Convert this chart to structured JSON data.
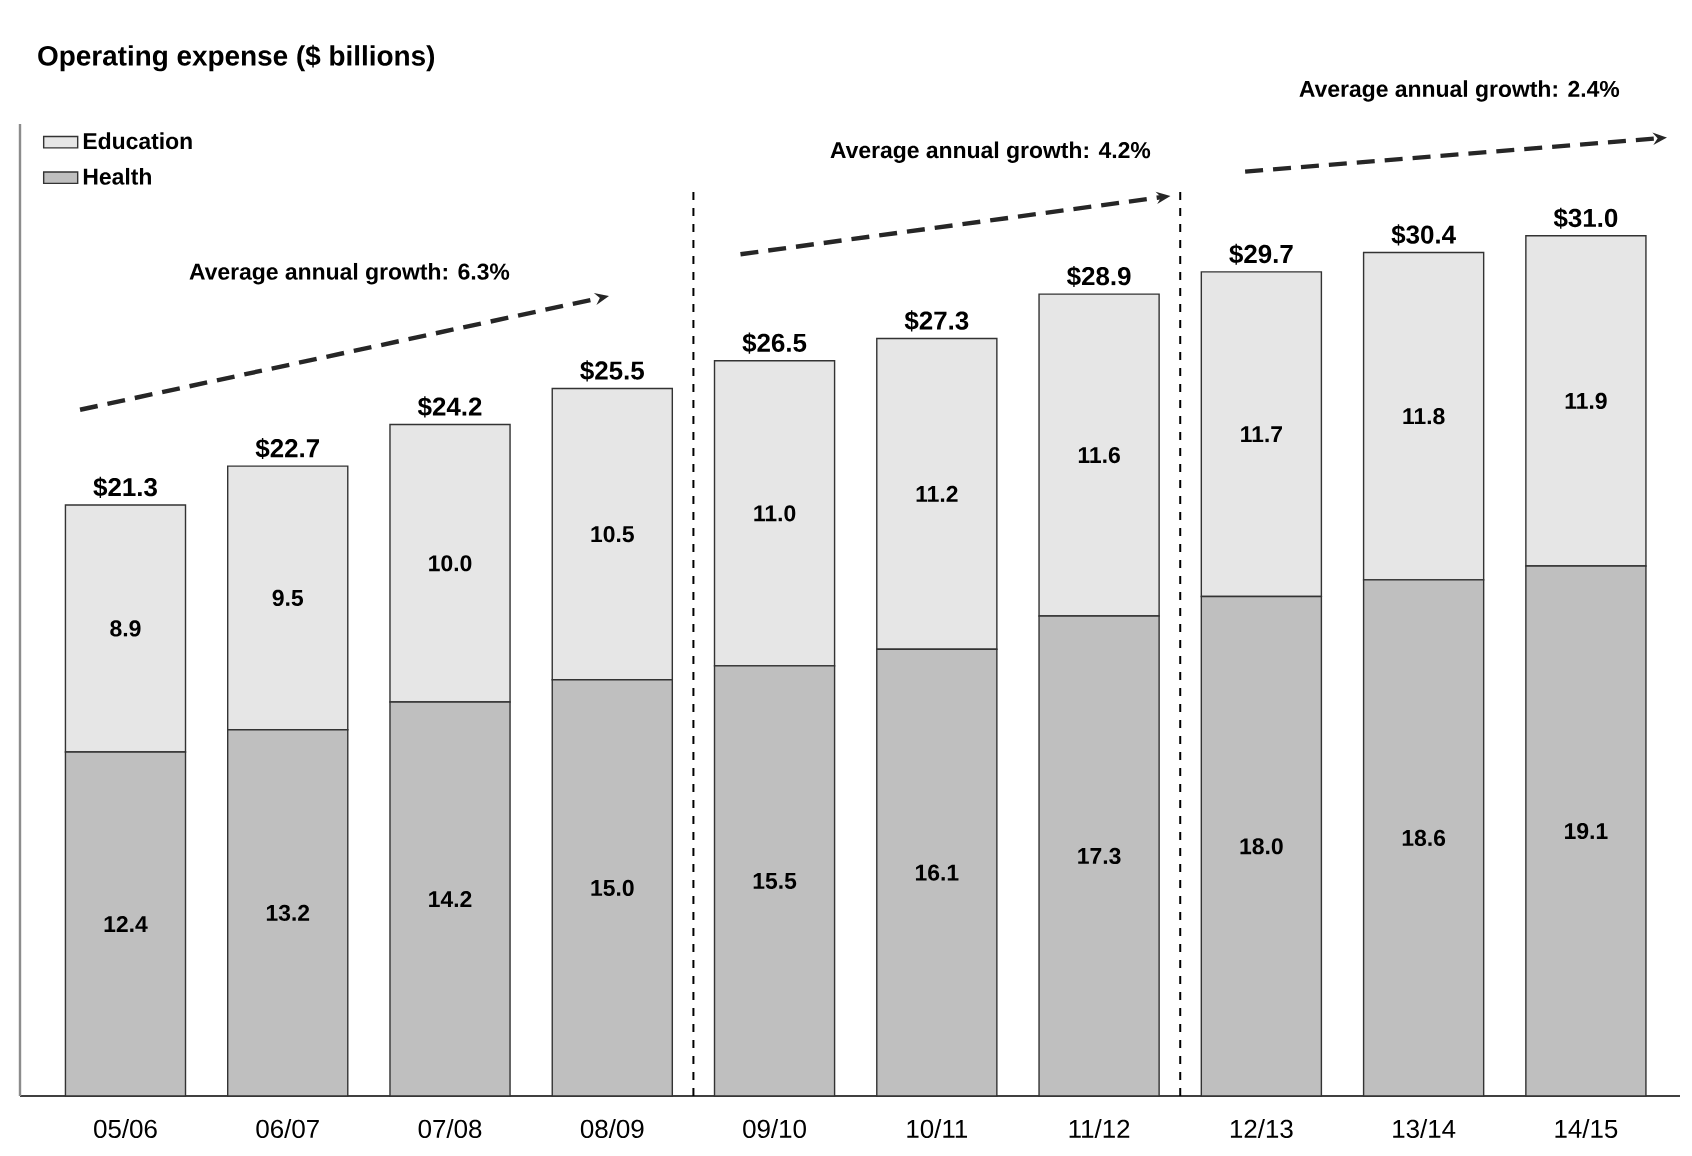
{
  "chart_data": {
    "type": "bar",
    "stacked": true,
    "title": "Operating expense ($ billions)",
    "categories": [
      "05/06",
      "06/07",
      "07/08",
      "08/09",
      "09/10",
      "10/11",
      "11/12",
      "12/13",
      "13/14",
      "14/15"
    ],
    "series": [
      {
        "name": "Health",
        "color": "#bfbfbf",
        "values": [
          12.4,
          13.2,
          14.2,
          15.0,
          15.5,
          16.1,
          17.3,
          18.0,
          18.6,
          19.1
        ],
        "value_labels": [
          "12.4",
          "13.2",
          "14.2",
          "15.0",
          "15.5",
          "16.1",
          "17.3",
          "18.0",
          "18.6",
          "19.1"
        ]
      },
      {
        "name": "Education",
        "color": "#e6e6e6",
        "values": [
          8.9,
          9.5,
          10.0,
          10.5,
          11.0,
          11.2,
          11.6,
          11.7,
          11.8,
          11.9
        ],
        "value_labels": [
          "8.9",
          "9.5",
          "10.0",
          "10.5",
          "11.0",
          "11.2",
          "11.6",
          "11.7",
          "11.8",
          "11.9"
        ]
      }
    ],
    "totals": [
      "$21.3",
      "$22.7",
      "$24.2",
      "$25.5",
      "$26.5",
      "$27.3",
      "$28.9",
      "$29.7",
      "$30.4",
      "$31.0"
    ],
    "tick_labels": "x",
    "annotations": [
      "Average annual growth: 6.3%",
      "Average annual growth: 4.2%",
      "Average annual growth: 2.4%"
    ],
    "legend": "top left"
  }
}
